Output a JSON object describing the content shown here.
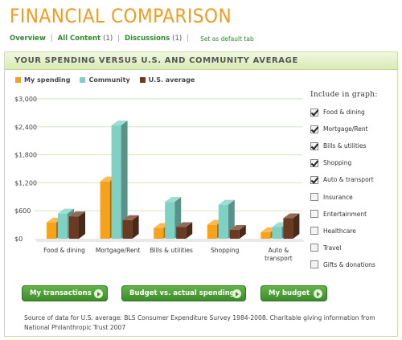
{
  "page": {
    "title": "FINANCIAL COMPARISON"
  },
  "tabs": {
    "overview": "Overview",
    "all_content": "All Content",
    "all_content_count": "(1)",
    "discussions": "Discussions",
    "discussions_count": "(1)",
    "set_default": "Set as default tab"
  },
  "panel": {
    "title": "YOUR SPENDING VERSUS U.S. AND COMMUNITY AVERAGE"
  },
  "legend": [
    {
      "label": "My spending",
      "color": "#f7a21b"
    },
    {
      "label": "Community",
      "color": "#7fd1c3"
    },
    {
      "label": "U.S. average",
      "color": "#6b3a22"
    }
  ],
  "chart_data": {
    "type": "bar",
    "categories": [
      "Food & dining",
      "Mortgage/Rent",
      "Bills & utilities",
      "Shopping",
      "Auto & transport"
    ],
    "series": [
      {
        "name": "My spending",
        "values": [
          350,
          1230,
          230,
          300,
          140
        ]
      },
      {
        "name": "Community",
        "values": [
          540,
          2430,
          790,
          730,
          250
        ]
      },
      {
        "name": "U.S. average",
        "values": [
          480,
          400,
          250,
          190,
          440
        ]
      }
    ],
    "y_ticks": [
      "$0",
      "$600",
      "$1,200",
      "$1,800",
      "$2,400",
      "$3,000"
    ],
    "ylim": [
      0,
      3000
    ],
    "grid": true,
    "legend_position": "top-left"
  },
  "include": {
    "title": "Include in graph:",
    "items": [
      {
        "label": "Food & dining",
        "checked": true
      },
      {
        "label": "Mortgage/Rent",
        "checked": true
      },
      {
        "label": "Bills & utilities",
        "checked": true
      },
      {
        "label": "Shopping",
        "checked": true
      },
      {
        "label": "Auto & transport",
        "checked": true
      },
      {
        "label": "Insurance",
        "checked": false
      },
      {
        "label": "Entertainment",
        "checked": false
      },
      {
        "label": "Healthcare",
        "checked": false
      },
      {
        "label": "Travel",
        "checked": false
      },
      {
        "label": "Gifts & donations",
        "checked": false
      }
    ]
  },
  "buttons": {
    "my_transactions": "My transactions",
    "budget_vs_actual": "Budget vs. actual spending",
    "my_budget": "My budget"
  },
  "source": "Source of data for U.S. average: BLS Consumer Expenditure Survey 1984-2008. Charitable giving information from National Philanthropic Trust 2007"
}
